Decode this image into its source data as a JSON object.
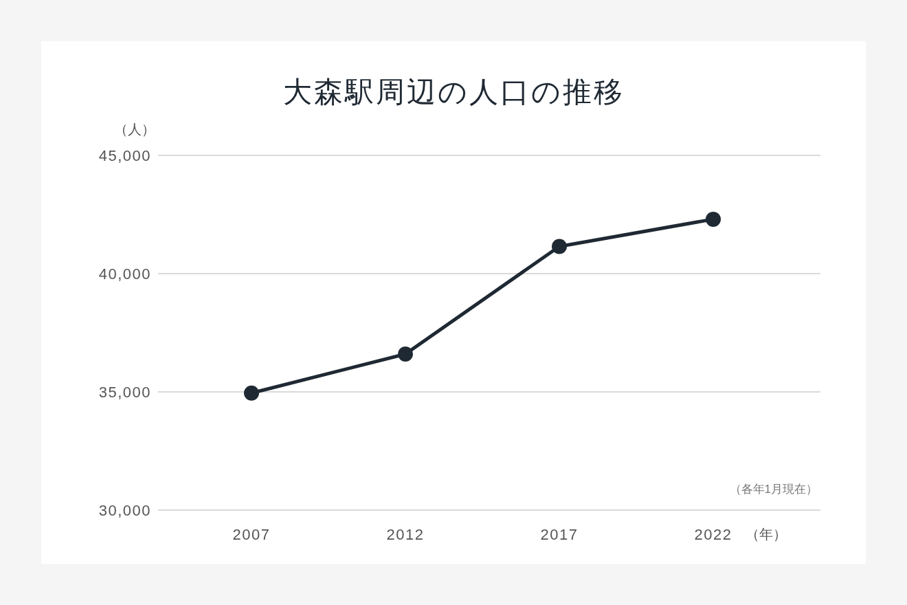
{
  "chart_data": {
    "type": "line",
    "title": "大森駅周辺の人口の推移",
    "xlabel": "（年）",
    "ylabel": "（人）",
    "categories": [
      "2007",
      "2012",
      "2017",
      "2022"
    ],
    "series": [
      {
        "color": "#1f2933",
        "values": [
          34950,
          36600,
          41150,
          42300
        ]
      }
    ],
    "ylim": [
      30000,
      45000
    ],
    "yticks": [
      {
        "value": 30000,
        "label": "30,000"
      },
      {
        "value": 35000,
        "label": "35,000"
      },
      {
        "value": 40000,
        "label": "40,000"
      },
      {
        "value": 45000,
        "label": "45,000"
      }
    ],
    "grid": "y",
    "marker": "circle",
    "annotations": [
      "（各年1月現在）"
    ]
  }
}
